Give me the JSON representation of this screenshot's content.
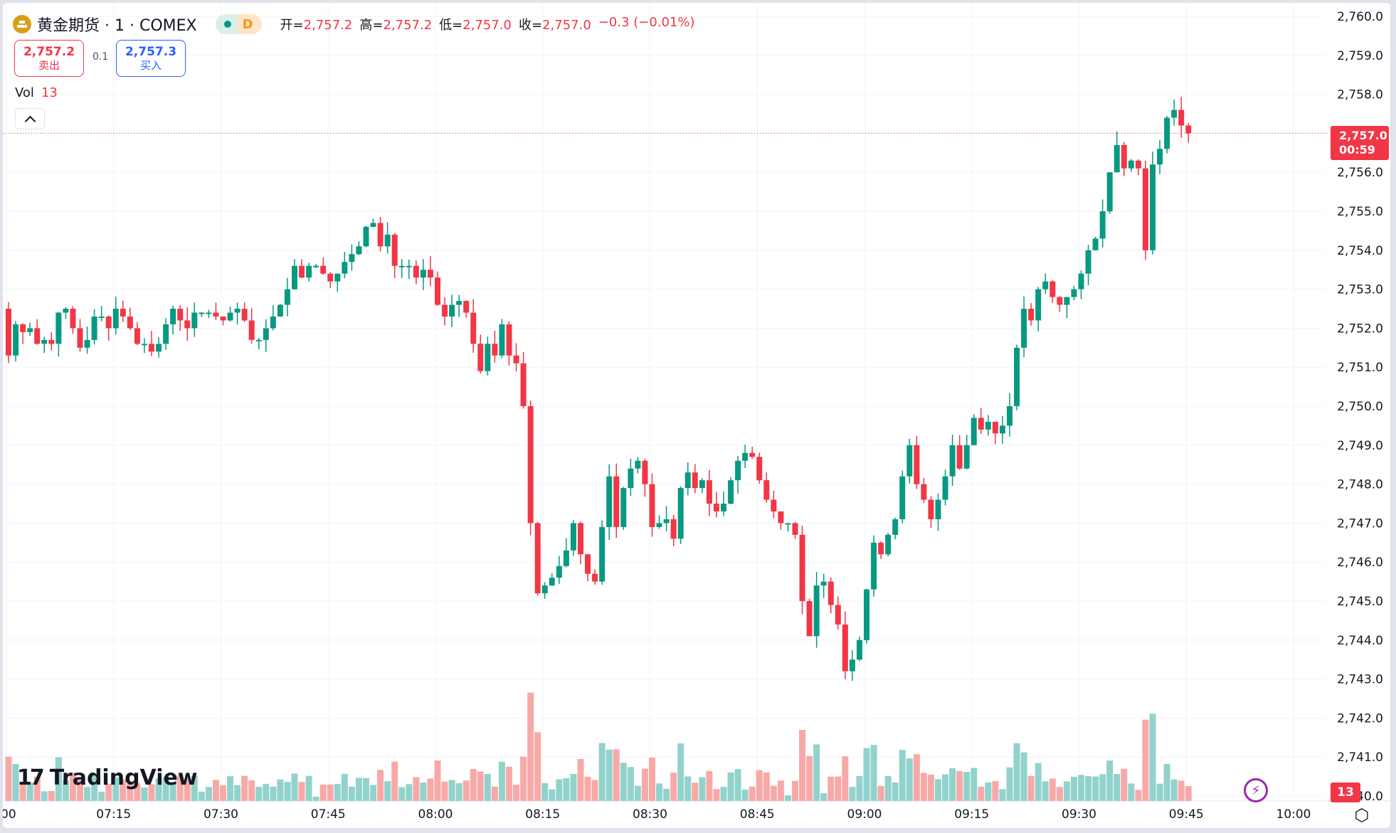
{
  "header": {
    "symbol_title": "黄金期货 · 1 · COMEX",
    "status_letter": "D",
    "ohlc": [
      {
        "label": "开=",
        "value": "2,757.2"
      },
      {
        "label": "高=",
        "value": "2,757.2"
      },
      {
        "label": "低=",
        "value": "2,757.0"
      },
      {
        "label": "收=",
        "value": "2,757.0"
      },
      {
        "label": "",
        "value": "−0.3 (−0.01%)"
      }
    ]
  },
  "quote": {
    "sell_price": "2,757.2",
    "sell_label": "卖出",
    "spread": "0.1",
    "buy_price": "2,757.3",
    "buy_label": "买入"
  },
  "volume_legend": {
    "label": "Vol",
    "value": "13"
  },
  "last_price_tag": {
    "price": "2,757.0",
    "countdown": "00:59"
  },
  "volume_tag": "13",
  "logo": {
    "mark": "17",
    "name": "TradingView"
  },
  "colors": {
    "up": "#089981",
    "down": "#f23645",
    "vol_up": "#92d2cc",
    "vol_down": "#f7a9a7",
    "grid": "#f0f3fa"
  },
  "chart_data": {
    "type": "candlestick",
    "title": "黄金期货 · 1 · COMEX",
    "interval": "1 minute",
    "y_ticks": [
      2760.0,
      2759.0,
      2758.0,
      2757.0,
      2756.0,
      2755.0,
      2754.0,
      2753.0,
      2752.0,
      2751.0,
      2750.0,
      2749.0,
      2748.0,
      2747.0,
      2746.0,
      2745.0,
      2744.0,
      2743.0,
      2742.0,
      2741.0,
      2740.0
    ],
    "y_tick_labels": [
      "2,760.0",
      "2,759.0",
      "2,758.0",
      "2,757.0",
      "2,756.0",
      "2,755.0",
      "2,754.0",
      "2,753.0",
      "2,752.0",
      "2,751.0",
      "2,750.0",
      "2,749.0",
      "2,748.0",
      "2,747.0",
      "2,746.0",
      "2,745.0",
      "2,744.0",
      "2,743.0",
      "2,742.0",
      "2,741.0",
      "40.0"
    ],
    "x_tick_labels": [
      ":00",
      "07:15",
      "07:30",
      "07:45",
      "08:00",
      "08:15",
      "08:30",
      "08:45",
      "09:00",
      "09:15",
      "09:30",
      "09:45",
      "10:00"
    ],
    "ylim": [
      2740.0,
      2760.0
    ],
    "last_price": 2757.0,
    "closes": [
      2751.3,
      2752.1,
      2751.9,
      2752.0,
      2751.6,
      2751.7,
      2751.6,
      2752.4,
      2752.5,
      2752.0,
      2751.5,
      2751.7,
      2752.3,
      2752.3,
      2752.0,
      2752.5,
      2752.3,
      2752.0,
      2751.6,
      2751.6,
      2751.4,
      2751.6,
      2752.1,
      2752.5,
      2752.2,
      2752.0,
      2752.4,
      2752.4,
      2752.4,
      2752.3,
      2752.2,
      2752.4,
      2752.5,
      2752.2,
      2751.7,
      2751.7,
      2752.0,
      2752.3,
      2752.6,
      2753.0,
      2753.6,
      2753.3,
      2753.6,
      2753.6,
      2753.4,
      2753.2,
      2753.4,
      2753.7,
      2753.9,
      2754.1,
      2754.6,
      2754.7,
      2754.1,
      2754.4,
      2753.6,
      2753.6,
      2753.6,
      2753.3,
      2753.5,
      2753.3,
      2752.6,
      2752.3,
      2752.6,
      2752.7,
      2752.4,
      2751.6,
      2750.9,
      2751.6,
      2751.3,
      2752.1,
      2751.3,
      2751.1,
      2750.0,
      2747.0,
      2745.2,
      2745.4,
      2745.6,
      2745.9,
      2746.3,
      2747.0,
      2746.2,
      2745.7,
      2745.5,
      2746.9,
      2748.2,
      2746.9,
      2747.9,
      2748.4,
      2748.6,
      2748.0,
      2746.9,
      2747.0,
      2747.1,
      2746.6,
      2747.9,
      2748.3,
      2747.9,
      2748.1,
      2747.5,
      2747.3,
      2747.5,
      2748.1,
      2748.6,
      2748.8,
      2748.7,
      2748.1,
      2747.6,
      2747.3,
      2747.0,
      2747.0,
      2746.7,
      2745.0,
      2744.1,
      2745.4,
      2745.5,
      2744.9,
      2744.4,
      2743.2,
      2743.5,
      2744.0,
      2745.3,
      2746.5,
      2746.2,
      2746.7,
      2747.1,
      2748.2,
      2749.0,
      2748.0,
      2747.6,
      2747.1,
      2747.6,
      2748.2,
      2749.0,
      2748.4,
      2749.0,
      2749.7,
      2749.4,
      2749.6,
      2749.3,
      2749.5,
      2750.0,
      2751.5,
      2752.5,
      2752.2,
      2753.0,
      2753.2,
      2752.8,
      2752.6,
      2752.8,
      2753.0,
      2753.4,
      2754.0,
      2754.3,
      2755.0,
      2756.0,
      2756.7,
      2756.1,
      2756.3,
      2756.1,
      2754.0,
      2756.2,
      2756.6,
      2757.4,
      2757.6,
      2757.2,
      2757.0
    ]
  }
}
